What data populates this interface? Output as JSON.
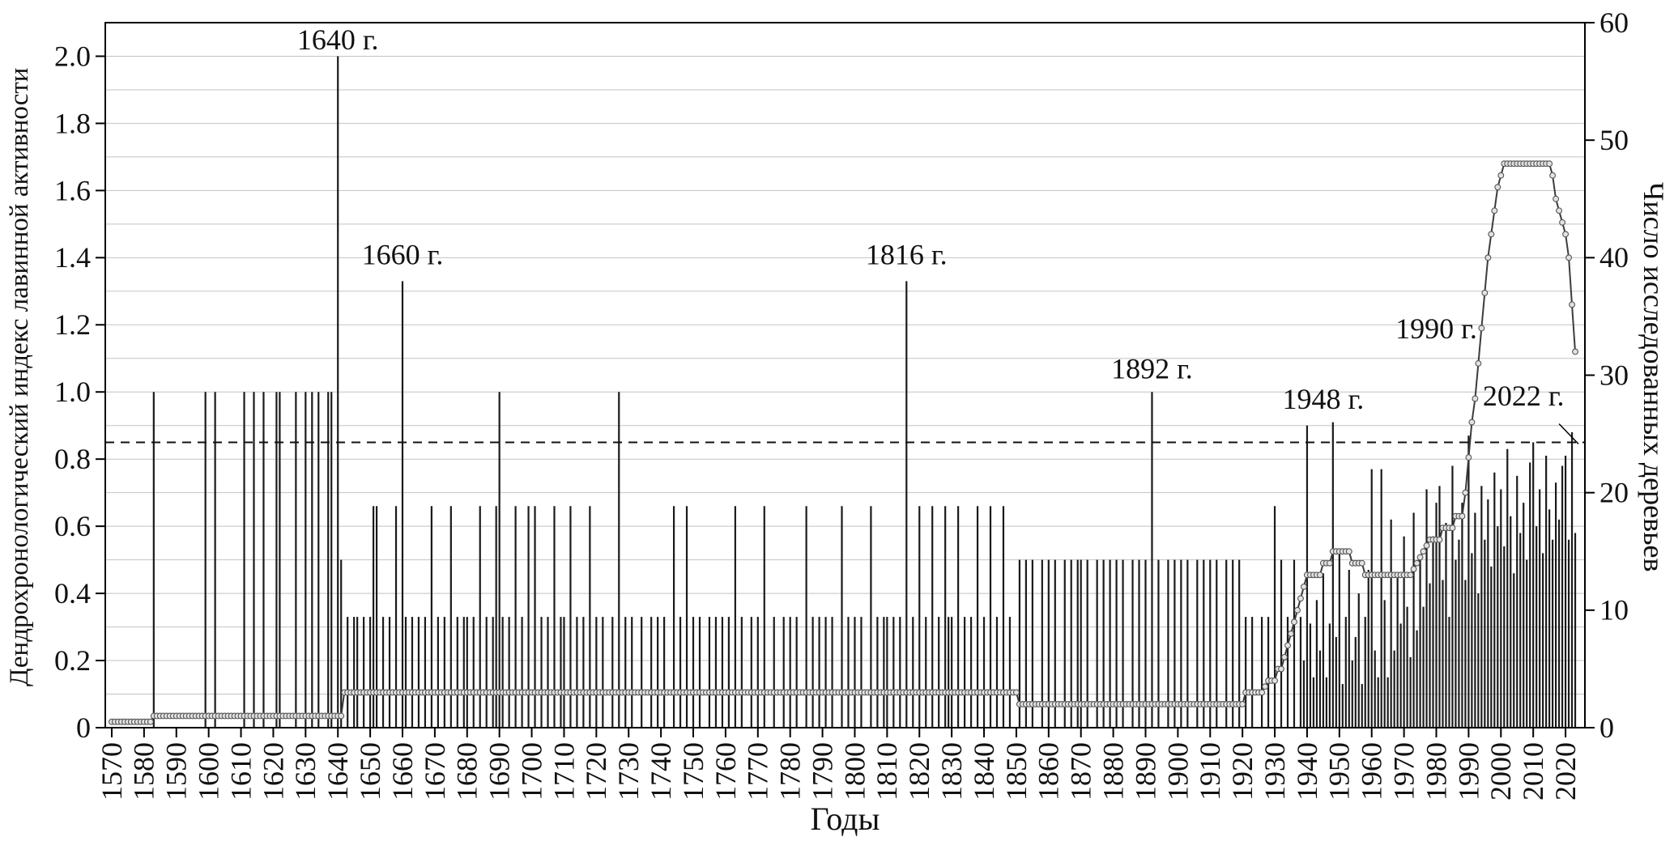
{
  "chart_data": {
    "type": "bar+line",
    "title": "",
    "xlabel": "Годы",
    "ylabel_left": "Дендрохронологический индекс лавинной активности",
    "ylabel_right": "Число исследованных деревьев",
    "x_range": [
      1568,
      2026
    ],
    "x_ticks": [
      1570,
      1580,
      1590,
      1600,
      1610,
      1620,
      1630,
      1640,
      1650,
      1660,
      1670,
      1680,
      1690,
      1700,
      1710,
      1720,
      1730,
      1740,
      1750,
      1760,
      1770,
      1780,
      1790,
      1800,
      1810,
      1820,
      1830,
      1840,
      1850,
      1860,
      1870,
      1880,
      1890,
      1900,
      1910,
      1920,
      1930,
      1940,
      1950,
      1960,
      1970,
      1980,
      1990,
      2000,
      2010,
      2020
    ],
    "y_left": {
      "min": 0,
      "max": 2.1,
      "grid_step": 0.1,
      "tick_values": [
        0,
        0.2,
        0.4,
        0.6,
        0.8,
        1.0,
        1.2,
        1.4,
        1.6,
        1.8,
        2.0
      ],
      "tick_labels": [
        "0",
        "0.2",
        "0.4",
        "0.6",
        "0.8",
        "1.0",
        "1.2",
        "1.4",
        "1.6",
        "1.8",
        "2.0"
      ]
    },
    "y_right": {
      "min": 0,
      "max": 60,
      "tick_values": [
        0,
        10,
        20,
        30,
        40,
        50,
        60
      ]
    },
    "threshold": 0.85,
    "colors": {
      "bar": "#1a1a1a",
      "line": "#3c3c3c",
      "marker_fill": "#e2e2e2",
      "marker_stroke": "#555555",
      "grid": "#c2c2c2",
      "axis": "#000000",
      "threshold": "#111111"
    },
    "bars": {
      "name": "Дендрохронологический индекс лавинной активности",
      "points": [
        [
          1583,
          1.0
        ],
        [
          1599,
          1.0
        ],
        [
          1602,
          1.0
        ],
        [
          1611,
          1.0
        ],
        [
          1614,
          1.0
        ],
        [
          1617,
          1.0
        ],
        [
          1621,
          1.0
        ],
        [
          1622,
          1.0
        ],
        [
          1627,
          1.0
        ],
        [
          1630,
          1.0
        ],
        [
          1632,
          1.0
        ],
        [
          1634,
          1.0
        ],
        [
          1637,
          1.0
        ],
        [
          1638,
          1.0
        ],
        [
          1640,
          2.0
        ],
        [
          1641,
          0.5
        ],
        [
          1643,
          0.33
        ],
        [
          1645,
          0.33
        ],
        [
          1646,
          0.33
        ],
        [
          1648,
          0.33
        ],
        [
          1650,
          0.33
        ],
        [
          1651,
          0.66
        ],
        [
          1652,
          0.66
        ],
        [
          1654,
          0.33
        ],
        [
          1656,
          0.33
        ],
        [
          1658,
          0.66
        ],
        [
          1660,
          1.33
        ],
        [
          1661,
          0.33
        ],
        [
          1663,
          0.33
        ],
        [
          1665,
          0.33
        ],
        [
          1667,
          0.33
        ],
        [
          1669,
          0.66
        ],
        [
          1671,
          0.33
        ],
        [
          1673,
          0.33
        ],
        [
          1675,
          0.66
        ],
        [
          1677,
          0.33
        ],
        [
          1679,
          0.33
        ],
        [
          1680,
          0.33
        ],
        [
          1682,
          0.33
        ],
        [
          1684,
          0.66
        ],
        [
          1686,
          0.33
        ],
        [
          1688,
          0.33
        ],
        [
          1689,
          0.66
        ],
        [
          1690,
          1.0
        ],
        [
          1691,
          0.33
        ],
        [
          1693,
          0.33
        ],
        [
          1695,
          0.66
        ],
        [
          1697,
          0.33
        ],
        [
          1699,
          0.66
        ],
        [
          1701,
          0.66
        ],
        [
          1703,
          0.33
        ],
        [
          1705,
          0.33
        ],
        [
          1707,
          0.66
        ],
        [
          1709,
          0.33
        ],
        [
          1710,
          0.33
        ],
        [
          1712,
          0.66
        ],
        [
          1714,
          0.33
        ],
        [
          1716,
          0.33
        ],
        [
          1718,
          0.66
        ],
        [
          1720,
          0.33
        ],
        [
          1722,
          0.33
        ],
        [
          1725,
          0.33
        ],
        [
          1727,
          1.0
        ],
        [
          1729,
          0.33
        ],
        [
          1731,
          0.33
        ],
        [
          1734,
          0.33
        ],
        [
          1737,
          0.33
        ],
        [
          1739,
          0.33
        ],
        [
          1741,
          0.33
        ],
        [
          1744,
          0.66
        ],
        [
          1746,
          0.33
        ],
        [
          1748,
          0.66
        ],
        [
          1750,
          0.33
        ],
        [
          1752,
          0.33
        ],
        [
          1755,
          0.33
        ],
        [
          1757,
          0.33
        ],
        [
          1759,
          0.33
        ],
        [
          1761,
          0.33
        ],
        [
          1763,
          0.66
        ],
        [
          1765,
          0.33
        ],
        [
          1768,
          0.33
        ],
        [
          1770,
          0.33
        ],
        [
          1772,
          0.66
        ],
        [
          1775,
          0.33
        ],
        [
          1778,
          0.33
        ],
        [
          1780,
          0.33
        ],
        [
          1782,
          0.33
        ],
        [
          1785,
          0.66
        ],
        [
          1787,
          0.33
        ],
        [
          1789,
          0.33
        ],
        [
          1791,
          0.33
        ],
        [
          1793,
          0.33
        ],
        [
          1796,
          0.66
        ],
        [
          1798,
          0.33
        ],
        [
          1800,
          0.33
        ],
        [
          1802,
          0.33
        ],
        [
          1805,
          0.66
        ],
        [
          1807,
          0.33
        ],
        [
          1809,
          0.33
        ],
        [
          1810,
          0.33
        ],
        [
          1812,
          0.33
        ],
        [
          1814,
          0.33
        ],
        [
          1816,
          1.33
        ],
        [
          1818,
          0.33
        ],
        [
          1820,
          0.66
        ],
        [
          1822,
          0.33
        ],
        [
          1824,
          0.66
        ],
        [
          1826,
          0.33
        ],
        [
          1828,
          0.66
        ],
        [
          1829,
          0.33
        ],
        [
          1830,
          0.33
        ],
        [
          1832,
          0.66
        ],
        [
          1834,
          0.33
        ],
        [
          1836,
          0.33
        ],
        [
          1838,
          0.66
        ],
        [
          1840,
          0.33
        ],
        [
          1842,
          0.66
        ],
        [
          1844,
          0.33
        ],
        [
          1846,
          0.66
        ],
        [
          1848,
          0.33
        ],
        [
          1851,
          0.5
        ],
        [
          1853,
          0.5
        ],
        [
          1855,
          0.5
        ],
        [
          1858,
          0.5
        ],
        [
          1860,
          0.5
        ],
        [
          1862,
          0.5
        ],
        [
          1865,
          0.5
        ],
        [
          1867,
          0.5
        ],
        [
          1869,
          0.5
        ],
        [
          1870,
          0.5
        ],
        [
          1872,
          0.5
        ],
        [
          1875,
          0.5
        ],
        [
          1877,
          0.5
        ],
        [
          1879,
          0.5
        ],
        [
          1881,
          0.5
        ],
        [
          1883,
          0.5
        ],
        [
          1886,
          0.5
        ],
        [
          1888,
          0.5
        ],
        [
          1890,
          0.5
        ],
        [
          1892,
          1.0
        ],
        [
          1894,
          0.5
        ],
        [
          1897,
          0.5
        ],
        [
          1899,
          0.5
        ],
        [
          1901,
          0.5
        ],
        [
          1903,
          0.5
        ],
        [
          1906,
          0.5
        ],
        [
          1908,
          0.5
        ],
        [
          1910,
          0.5
        ],
        [
          1912,
          0.5
        ],
        [
          1915,
          0.5
        ],
        [
          1917,
          0.5
        ],
        [
          1919,
          0.5
        ],
        [
          1921,
          0.33
        ],
        [
          1923,
          0.33
        ],
        [
          1926,
          0.33
        ],
        [
          1928,
          0.33
        ],
        [
          1930,
          0.66
        ],
        [
          1932,
          0.5
        ],
        [
          1934,
          0.33
        ],
        [
          1936,
          0.5
        ],
        [
          1938,
          0.33
        ],
        [
          1939,
          0.2
        ],
        [
          1940,
          0.9
        ],
        [
          1941,
          0.31
        ],
        [
          1942,
          0.15
        ],
        [
          1943,
          0.38
        ],
        [
          1944,
          0.23
        ],
        [
          1945,
          0.46
        ],
        [
          1946,
          0.15
        ],
        [
          1947,
          0.31
        ],
        [
          1948,
          0.91
        ],
        [
          1949,
          0.27
        ],
        [
          1950,
          0.53
        ],
        [
          1951,
          0.13
        ],
        [
          1952,
          0.33
        ],
        [
          1953,
          0.47
        ],
        [
          1954,
          0.2
        ],
        [
          1955,
          0.27
        ],
        [
          1956,
          0.4
        ],
        [
          1957,
          0.13
        ],
        [
          1958,
          0.33
        ],
        [
          1959,
          0.47
        ],
        [
          1960,
          0.77
        ],
        [
          1961,
          0.23
        ],
        [
          1962,
          0.15
        ],
        [
          1963,
          0.77
        ],
        [
          1964,
          0.38
        ],
        [
          1965,
          0.15
        ],
        [
          1966,
          0.62
        ],
        [
          1967,
          0.23
        ],
        [
          1968,
          0.46
        ],
        [
          1969,
          0.31
        ],
        [
          1970,
          0.57
        ],
        [
          1971,
          0.36
        ],
        [
          1972,
          0.21
        ],
        [
          1973,
          0.64
        ],
        [
          1974,
          0.29
        ],
        [
          1975,
          0.5
        ],
        [
          1976,
          0.36
        ],
        [
          1977,
          0.71
        ],
        [
          1978,
          0.43
        ],
        [
          1979,
          0.57
        ],
        [
          1980,
          0.67
        ],
        [
          1981,
          0.72
        ],
        [
          1982,
          0.44
        ],
        [
          1983,
          0.61
        ],
        [
          1984,
          0.33
        ],
        [
          1985,
          0.78
        ],
        [
          1986,
          0.5
        ],
        [
          1987,
          0.56
        ],
        [
          1988,
          0.67
        ],
        [
          1989,
          0.44
        ],
        [
          1990,
          0.87
        ],
        [
          1991,
          0.52
        ],
        [
          1992,
          0.64
        ],
        [
          1993,
          0.4
        ],
        [
          1994,
          0.72
        ],
        [
          1995,
          0.56
        ],
        [
          1996,
          0.68
        ],
        [
          1997,
          0.48
        ],
        [
          1998,
          0.76
        ],
        [
          1999,
          0.6
        ],
        [
          2000,
          0.71
        ],
        [
          2001,
          0.54
        ],
        [
          2002,
          0.83
        ],
        [
          2003,
          0.63
        ],
        [
          2004,
          0.46
        ],
        [
          2005,
          0.75
        ],
        [
          2006,
          0.58
        ],
        [
          2007,
          0.67
        ],
        [
          2008,
          0.5
        ],
        [
          2009,
          0.79
        ],
        [
          2010,
          0.85
        ],
        [
          2011,
          0.6
        ],
        [
          2012,
          0.71
        ],
        [
          2013,
          0.52
        ],
        [
          2014,
          0.81
        ],
        [
          2015,
          0.65
        ],
        [
          2016,
          0.56
        ],
        [
          2017,
          0.73
        ],
        [
          2018,
          0.62
        ],
        [
          2019,
          0.78
        ],
        [
          2020,
          0.81
        ],
        [
          2021,
          0.56
        ],
        [
          2022,
          0.88
        ],
        [
          2023,
          0.58
        ]
      ]
    },
    "trees_line": {
      "name": "Число исследованных деревьев",
      "breakpoints": [
        [
          1570,
          0.5
        ],
        [
          1582,
          0.5
        ],
        [
          1583,
          1
        ],
        [
          1641,
          1
        ],
        [
          1642,
          3
        ],
        [
          1850,
          3
        ],
        [
          1851,
          2
        ],
        [
          1920,
          2
        ],
        [
          1921,
          3
        ],
        [
          1926,
          3
        ],
        [
          1928,
          4
        ],
        [
          1930,
          4
        ],
        [
          1931,
          5
        ],
        [
          1932,
          5
        ],
        [
          1933,
          6
        ],
        [
          1934,
          7
        ],
        [
          1935,
          8
        ],
        [
          1936,
          9
        ],
        [
          1937,
          10
        ],
        [
          1938,
          11
        ],
        [
          1939,
          12
        ],
        [
          1940,
          13
        ],
        [
          1944,
          13
        ],
        [
          1945,
          14
        ],
        [
          1947,
          14
        ],
        [
          1948,
          15
        ],
        [
          1953,
          15
        ],
        [
          1954,
          14
        ],
        [
          1957,
          14
        ],
        [
          1958,
          13
        ],
        [
          1972,
          13
        ],
        [
          1974,
          14
        ],
        [
          1976,
          15
        ],
        [
          1978,
          16
        ],
        [
          1981,
          16
        ],
        [
          1982,
          17
        ],
        [
          1985,
          17
        ],
        [
          1986,
          18
        ],
        [
          1988,
          18
        ],
        [
          1989,
          20
        ],
        [
          1990,
          23
        ],
        [
          1991,
          26
        ],
        [
          1992,
          28
        ],
        [
          1993,
          31
        ],
        [
          1994,
          34
        ],
        [
          1995,
          37
        ],
        [
          1996,
          40
        ],
        [
          1997,
          42
        ],
        [
          1998,
          44
        ],
        [
          1999,
          46
        ],
        [
          2000,
          47
        ],
        [
          2001,
          48
        ],
        [
          2013,
          48
        ],
        [
          2015,
          48
        ],
        [
          2016,
          47
        ],
        [
          2017,
          45
        ],
        [
          2018,
          44
        ],
        [
          2019,
          43
        ],
        [
          2020,
          42
        ],
        [
          2021,
          40
        ],
        [
          2022,
          36
        ],
        [
          2023,
          32
        ]
      ]
    },
    "annotations": [
      {
        "text": "1640 г.",
        "x": 1640,
        "y": 2.02
      },
      {
        "text": "1660 г.",
        "x": 1660,
        "y": 1.38
      },
      {
        "text": "1816 г.",
        "x": 1816,
        "y": 1.38
      },
      {
        "text": "1892 г.",
        "x": 1892,
        "y": 1.04
      },
      {
        "text": "1948 г.",
        "x": 1945,
        "y": 0.95
      },
      {
        "text": "1990 г.",
        "x": 1980,
        "y": 1.16
      },
      {
        "text": "2022 г.",
        "x": 2007,
        "y": 0.96,
        "leader": [
          [
            2018,
            0.905
          ],
          [
            2024,
            0.845
          ]
        ]
      }
    ]
  }
}
